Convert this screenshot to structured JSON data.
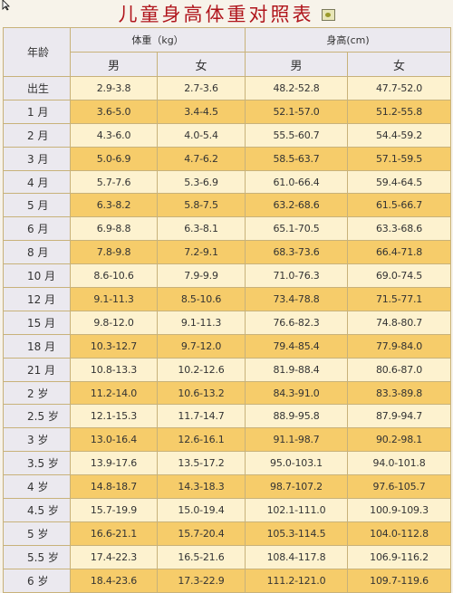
{
  "title": "儿童身高体重对照表",
  "headers": {
    "age": "年龄",
    "weight": "体重（kg）",
    "height": "身高(cm)",
    "male": "男",
    "female": "女"
  },
  "rows": [
    {
      "age": "出生",
      "wm": "2.9-3.8",
      "wf": "2.7-3.6",
      "hm": "48.2-52.8",
      "hf": "47.7-52.0"
    },
    {
      "age": "1 月",
      "wm": "3.6-5.0",
      "wf": "3.4-4.5",
      "hm": "52.1-57.0",
      "hf": "51.2-55.8"
    },
    {
      "age": "2 月",
      "wm": "4.3-6.0",
      "wf": "4.0-5.4",
      "hm": "55.5-60.7",
      "hf": "54.4-59.2"
    },
    {
      "age": "3 月",
      "wm": "5.0-6.9",
      "wf": "4.7-6.2",
      "hm": "58.5-63.7",
      "hf": "57.1-59.5"
    },
    {
      "age": "4 月",
      "wm": "5.7-7.6",
      "wf": "5.3-6.9",
      "hm": "61.0-66.4",
      "hf": "59.4-64.5"
    },
    {
      "age": "5 月",
      "wm": "6.3-8.2",
      "wf": "5.8-7.5",
      "hm": "63.2-68.6",
      "hf": "61.5-66.7"
    },
    {
      "age": "6 月",
      "wm": "6.9-8.8",
      "wf": "6.3-8.1",
      "hm": "65.1-70.5",
      "hf": "63.3-68.6"
    },
    {
      "age": "8 月",
      "wm": "7.8-9.8",
      "wf": "7.2-9.1",
      "hm": "68.3-73.6",
      "hf": "66.4-71.8"
    },
    {
      "age": "10 月",
      "wm": "8.6-10.6",
      "wf": "7.9-9.9",
      "hm": "71.0-76.3",
      "hf": "69.0-74.5"
    },
    {
      "age": "12 月",
      "wm": "9.1-11.3",
      "wf": "8.5-10.6",
      "hm": "73.4-78.8",
      "hf": "71.5-77.1"
    },
    {
      "age": "15 月",
      "wm": "9.8-12.0",
      "wf": "9.1-11.3",
      "hm": "76.6-82.3",
      "hf": "74.8-80.7"
    },
    {
      "age": "18 月",
      "wm": "10.3-12.7",
      "wf": "9.7-12.0",
      "hm": "79.4-85.4",
      "hf": "77.9-84.0"
    },
    {
      "age": "21 月",
      "wm": "10.8-13.3",
      "wf": "10.2-12.6",
      "hm": "81.9-88.4",
      "hf": "80.6-87.0"
    },
    {
      "age": "2 岁",
      "wm": "11.2-14.0",
      "wf": "10.6-13.2",
      "hm": "84.3-91.0",
      "hf": "83.3-89.8"
    },
    {
      "age": "2.5 岁",
      "wm": "12.1-15.3",
      "wf": "11.7-14.7",
      "hm": "88.9-95.8",
      "hf": "87.9-94.7"
    },
    {
      "age": "3 岁",
      "wm": "13.0-16.4",
      "wf": "12.6-16.1",
      "hm": "91.1-98.7",
      "hf": "90.2-98.1"
    },
    {
      "age": "3.5 岁",
      "wm": "13.9-17.6",
      "wf": "13.5-17.2",
      "hm": "95.0-103.1",
      "hf": "94.0-101.8"
    },
    {
      "age": "4 岁",
      "wm": "14.8-18.7",
      "wf": "14.3-18.3",
      "hm": "98.7-107.2",
      "hf": "97.6-105.7"
    },
    {
      "age": "4.5 岁",
      "wm": "15.7-19.9",
      "wf": "15.0-19.4",
      "hm": "102.1-111.0",
      "hf": "100.9-109.3"
    },
    {
      "age": "5 岁",
      "wm": "16.6-21.1",
      "wf": "15.7-20.4",
      "hm": "105.3-114.5",
      "hf": "104.0-112.8"
    },
    {
      "age": "5.5 岁",
      "wm": "17.4-22.3",
      "wf": "16.5-21.6",
      "hm": "108.4-117.8",
      "hf": "106.9-116.2"
    },
    {
      "age": "6 岁",
      "wm": "18.4-23.6",
      "wf": "17.3-22.9",
      "hm": "111.2-121.0",
      "hf": "109.7-119.6"
    }
  ]
}
